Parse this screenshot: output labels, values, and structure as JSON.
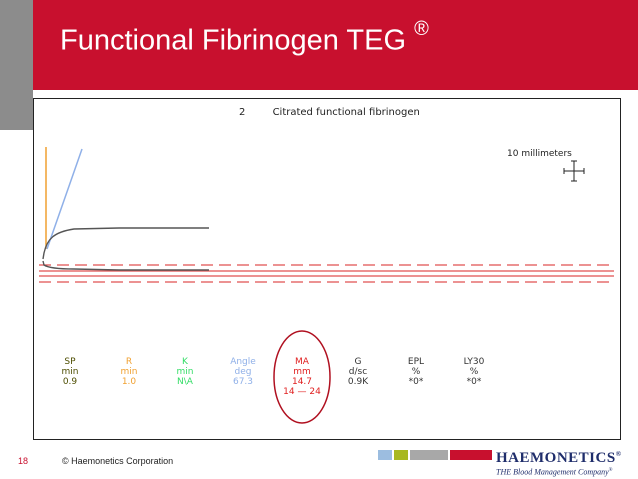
{
  "slide": {
    "title": "Functional Fibrinogen TEG",
    "title_mark": "®",
    "colors": {
      "accent": "#c8102e",
      "side": "#8c8c8c"
    }
  },
  "panel": {
    "number": "2",
    "title": "Citrated functional fibrinogen",
    "scale_label": "10 millimeters"
  },
  "parameters": [
    {
      "name": "SP",
      "unit": "min",
      "value": "0.9",
      "range": "",
      "color": "#4d4d00"
    },
    {
      "name": "R",
      "unit": "min",
      "value": "1.0",
      "range": "",
      "color": "#f0a030"
    },
    {
      "name": "K",
      "unit": "min",
      "value": "N\\A",
      "range": "",
      "color": "#33dd66"
    },
    {
      "name": "Angle",
      "unit": "deg",
      "value": "67.3",
      "range": "",
      "color": "#8fb0e8"
    },
    {
      "name": "MA",
      "unit": "mm",
      "value": "14.7",
      "range": "14 — 24",
      "color": "#e02020"
    },
    {
      "name": "G",
      "unit": "d/sc",
      "value": "0.9K",
      "range": "",
      "color": "#333333"
    },
    {
      "name": "EPL",
      "unit": "%",
      "value": "*0*",
      "range": "",
      "color": "#333333"
    },
    {
      "name": "LY30",
      "unit": "%",
      "value": "*0*",
      "range": "",
      "color": "#333333"
    }
  ],
  "footer": {
    "slide_number": "18",
    "copyright": "© Haemonetics Corporation",
    "brand": "HAEMONETICS",
    "brand_mark": "®",
    "tagline": "THE Blood Management Company",
    "tagline_mark": "®",
    "swatch_colors": [
      "#9cbde0",
      "#a8b820",
      "#a8a8a8",
      "#c8102e"
    ]
  }
}
